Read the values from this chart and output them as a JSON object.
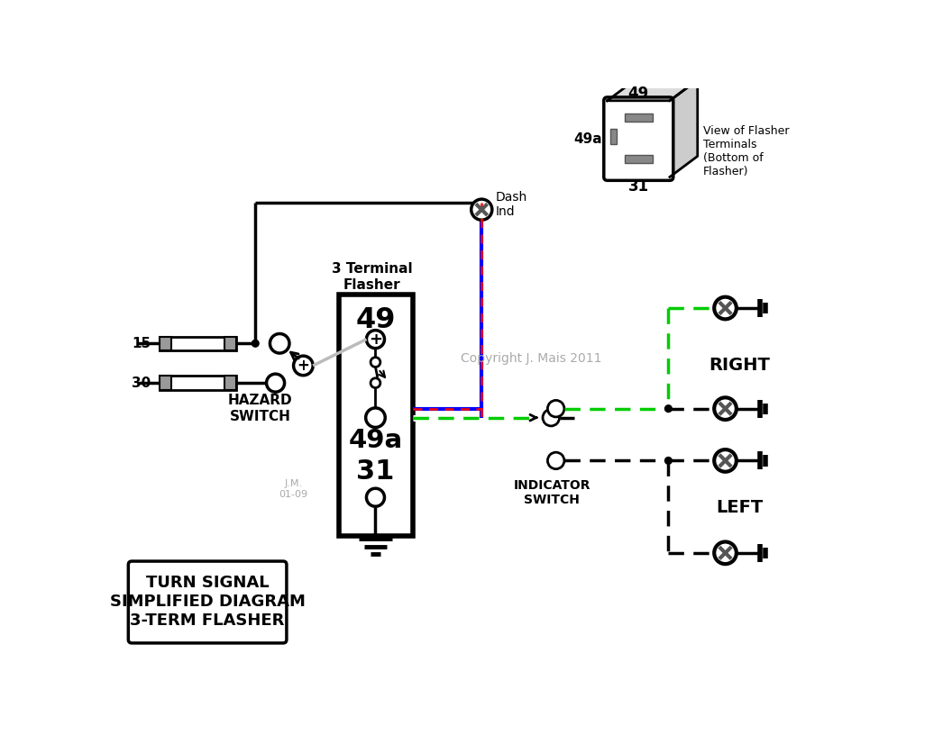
{
  "bg": "#ffffff",
  "black": "#000000",
  "green": "#00cc00",
  "blue": "#0000ff",
  "red": "#ff0000",
  "gray": "#888888",
  "lgray": "#aaaaaa",
  "dgray": "#555555",
  "title": "TURN SIGNAL\nSIMPLIFIED DIAGRAM\n3-TERM FLASHER",
  "copyright": "Copyright J. Mais 2011",
  "jm": "J.M.\n01-09",
  "right_lbl": "RIGHT",
  "left_lbl": "LEFT",
  "hazard_lbl": "HAZARD\nSWITCH",
  "indicator_lbl": "INDICATOR\nSWITCH",
  "flasher_lbl": "3 Terminal\nFlasher",
  "view_lbl": "View of Flasher\nTerminals\n(Bottom of\nFlasher)",
  "lbl_49": "49",
  "lbl_49a": "49a",
  "lbl_31": "31",
  "lbl_15": "15",
  "lbl_30": "30",
  "lbl_dash": "Dash\nInd"
}
